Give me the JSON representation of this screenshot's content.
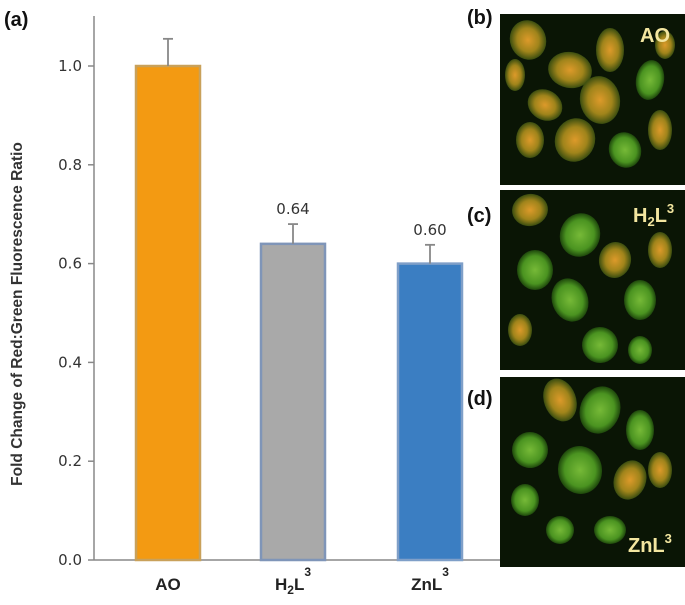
{
  "chart_data": {
    "type": "bar",
    "panel_label": "(a)",
    "ylabel": "Fold Change of Red:Green Fluorescence Ratio",
    "xlabel": "",
    "ylim": [
      0,
      1.1
    ],
    "yticks": [
      "0.0",
      "0.2",
      "0.4",
      "0.6",
      "0.8",
      "1.0"
    ],
    "categories": [
      "AO",
      "H2L3",
      "ZnL3"
    ],
    "values": [
      1.0,
      0.64,
      0.6
    ],
    "errors": [
      0.055,
      0.04,
      0.038
    ],
    "data_labels": [
      "",
      "0.64",
      "0.60"
    ],
    "bar_colors": [
      "#f39a12",
      "#a9a9a9",
      "#3b7ec2"
    ],
    "bar_edge_colors": [
      "#c9a15a",
      "#7f95b8",
      "#7f9fc8"
    ],
    "grid": false,
    "legend": "none"
  },
  "micrographs": [
    {
      "panel_label": "(b)",
      "caption": "AO",
      "orange_level": 0.75
    },
    {
      "panel_label": "(c)",
      "caption": "H2L3",
      "orange_level": 0.35
    },
    {
      "panel_label": "(d)",
      "caption": "ZnL3",
      "orange_level": 0.3
    }
  ]
}
